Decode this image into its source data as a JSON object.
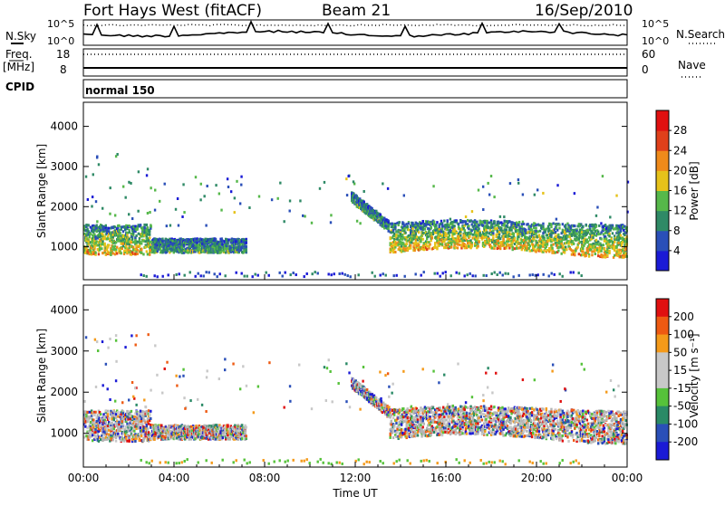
{
  "header": {
    "station": "Fort Hays West (fitACF)",
    "beam": "Beam 21",
    "date": "16/Sep/2010"
  },
  "aux_panels": {
    "nsky_label": "N.Sky",
    "nsky_ticks": [
      "10^5",
      "10^0"
    ],
    "nsearch_ticks": [
      "10^5",
      "10^0"
    ],
    "nsearch_label": "N.Search",
    "freq_label": "Freq.",
    "freq_unit": "[MHz]",
    "freq_ticks": [
      "18",
      "8"
    ],
    "nave_ticks": [
      "60",
      "0"
    ],
    "nave_label": "Nave",
    "cpid_label": "CPID",
    "cpid_value": "normal 150"
  },
  "colors": {
    "power": [
      "#1a1ad6",
      "#2a4fb8",
      "#2f8a66",
      "#56b84a",
      "#e6c21a",
      "#ef8a1a",
      "#e0401a",
      "#e01010"
    ],
    "velocity": [
      "#e01010",
      "#ee5a12",
      "#f49a1a",
      "#c8c8c8",
      "#c8c8c8",
      "#56c23a",
      "#2a8a66",
      "#2a4fb8",
      "#1a1ad6"
    ],
    "ground_scatter": "#b4b4b4"
  },
  "chart_data": [
    {
      "type": "heatmap",
      "name": "power",
      "xlabel": "",
      "ylabel": "Slant Range [km]",
      "xlim": [
        0,
        24
      ],
      "ylim": [
        180,
        4600
      ],
      "yticks": [
        1000,
        2000,
        3000,
        4000
      ],
      "colorbar": {
        "label": "Power [dB]",
        "ticks": [
          "4",
          "8",
          "12",
          "16",
          "20",
          "24",
          "28"
        ],
        "range": [
          0,
          30
        ]
      },
      "echo_regions": [
        {
          "t": [
            0.0,
            3.0
          ],
          "r": [
            800,
            1550
          ],
          "level": "high"
        },
        {
          "t": [
            3.0,
            7.2
          ],
          "r": [
            850,
            1200
          ],
          "level": "mid"
        },
        {
          "t": [
            11.8,
            13.5
          ],
          "r": [
            1300,
            2200
          ],
          "level": "mid"
        },
        {
          "t": [
            13.5,
            24.0
          ],
          "r": [
            850,
            1600
          ],
          "level": "high"
        }
      ]
    },
    {
      "type": "heatmap",
      "name": "velocity",
      "xlabel": "Time UT",
      "ylabel": "Slant Range [km]",
      "xlim": [
        0,
        24
      ],
      "ylim": [
        180,
        4600
      ],
      "xticks": [
        "00:00",
        "04:00",
        "08:00",
        "12:00",
        "16:00",
        "20:00",
        "00:00"
      ],
      "yticks": [
        1000,
        2000,
        3000,
        4000
      ],
      "colorbar": {
        "label": "Velocity [m s⁻¹]",
        "ticks": [
          "200",
          "100",
          "50",
          "15",
          "-15",
          "-50",
          "-100",
          "-200"
        ],
        "range": [
          -250,
          250
        ]
      }
    }
  ]
}
